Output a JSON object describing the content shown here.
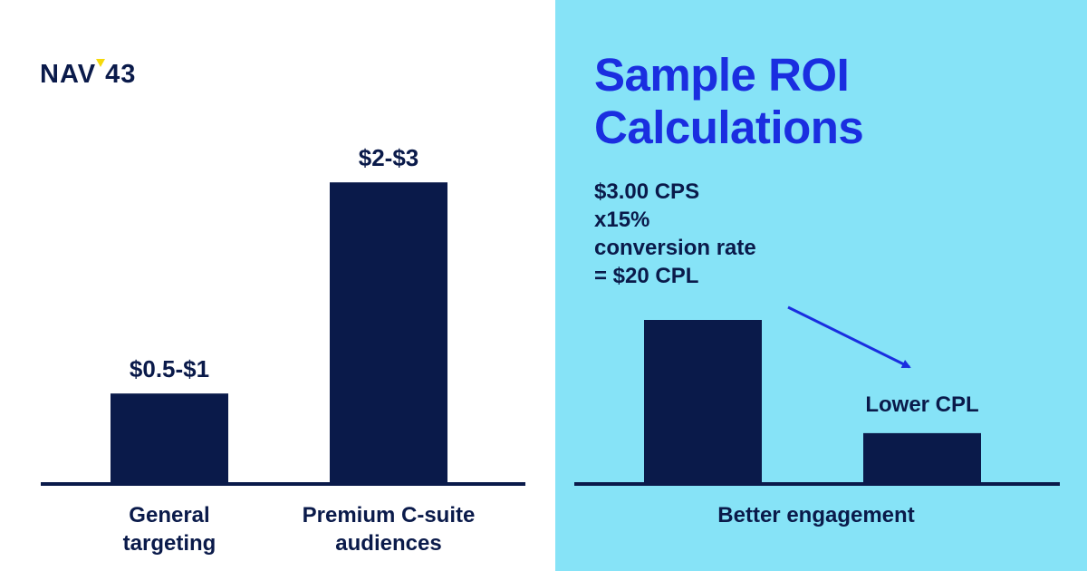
{
  "brand": {
    "logo_text_left": "NAV",
    "logo_text_right": "43",
    "accent": "#f5d90a"
  },
  "colors": {
    "bar": "#0a1a4a",
    "right_bg": "#86e3f7",
    "title": "#1a2ee0",
    "arrow": "#1a2ee0"
  },
  "right": {
    "title_line1": "Sample ROI",
    "title_line2": "Calculations",
    "calc": [
      "$3.00 CPS",
      "x15%",
      "conversion rate",
      "= $20 CPL"
    ]
  },
  "chart_data": [
    {
      "type": "bar",
      "title": "",
      "categories": [
        "General targeting",
        "Premium C-suite audiences"
      ],
      "category_lines": [
        [
          "General",
          "targeting"
        ],
        [
          "Premium C-suite",
          "audiences"
        ]
      ],
      "data_labels": [
        "$0.5-$1",
        "$2-$3"
      ],
      "values": [
        0.75,
        2.5
      ],
      "ylim": [
        0,
        3.08
      ],
      "grid": false
    },
    {
      "type": "bar",
      "title": "",
      "xlabel": "Better engagement",
      "values": [
        1,
        0.31
      ],
      "ylim": [
        0,
        1
      ],
      "annotations": [
        "Lower CPL"
      ],
      "grid": false
    }
  ]
}
